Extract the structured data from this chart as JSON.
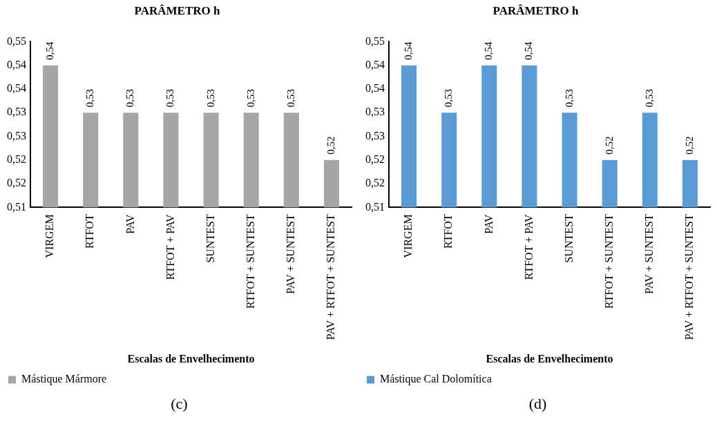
{
  "chart_data": [
    {
      "type": "bar",
      "title": "PARÂMETRO h",
      "xlabel": "Escalas de Envelhecimento",
      "categories": [
        "VIRGEM",
        "RTFOT",
        "PAV",
        "RTFOT + PAV",
        "SUNTEST",
        "RTFOT + SUNTEST",
        "PAV + SUNTEST",
        "PAV + RTFOT + SUNTEST"
      ],
      "series": [
        {
          "name": "Mástique Mármore",
          "color": "#a6a6a6",
          "values": [
            0.54,
            0.53,
            0.53,
            0.53,
            0.53,
            0.53,
            0.53,
            0.52
          ]
        }
      ],
      "ylim": [
        0.51,
        0.545
      ],
      "yticks": [
        {
          "value": 0.51,
          "label": "0,51"
        },
        {
          "value": 0.515,
          "label": "0,52"
        },
        {
          "value": 0.52,
          "label": "0,52"
        },
        {
          "value": 0.525,
          "label": "0,53"
        },
        {
          "value": 0.53,
          "label": "0,53"
        },
        {
          "value": 0.535,
          "label": "0,54"
        },
        {
          "value": 0.54,
          "label": "0,54"
        },
        {
          "value": 0.545,
          "label": "0,55"
        }
      ],
      "value_labels": [
        "0,54",
        "0,53",
        "0,53",
        "0,53",
        "0,53",
        "0,53",
        "0,53",
        "0,52"
      ],
      "grid": false,
      "legend": "bottom",
      "annotations": [
        "(c)"
      ]
    },
    {
      "type": "bar",
      "title": "PARÂMETRO h",
      "xlabel": "Escalas de Envelhecimento",
      "categories": [
        "VIRGEM",
        "RTFOT",
        "PAV",
        "RTFOT + PAV",
        "SUNTEST",
        "RTFOT + SUNTEST",
        "PAV + SUNTEST",
        "PAV + RTFOT + SUNTEST"
      ],
      "series": [
        {
          "name": "Mástique Cal Dolomítica",
          "color": "#5b9bd5",
          "values": [
            0.54,
            0.53,
            0.54,
            0.54,
            0.53,
            0.52,
            0.53,
            0.52
          ]
        }
      ],
      "ylim": [
        0.51,
        0.545
      ],
      "yticks": [
        {
          "value": 0.51,
          "label": "0,51"
        },
        {
          "value": 0.515,
          "label": "0,52"
        },
        {
          "value": 0.52,
          "label": "0,52"
        },
        {
          "value": 0.525,
          "label": "0,53"
        },
        {
          "value": 0.53,
          "label": "0,53"
        },
        {
          "value": 0.535,
          "label": "0,54"
        },
        {
          "value": 0.54,
          "label": "0,54"
        },
        {
          "value": 0.545,
          "label": "0,55"
        }
      ],
      "value_labels": [
        "0,54",
        "0,53",
        "0,54",
        "0,54",
        "0,53",
        "0,52",
        "0,53",
        "0,52"
      ],
      "grid": false,
      "legend": "bottom",
      "annotations": [
        "(d)"
      ]
    }
  ]
}
